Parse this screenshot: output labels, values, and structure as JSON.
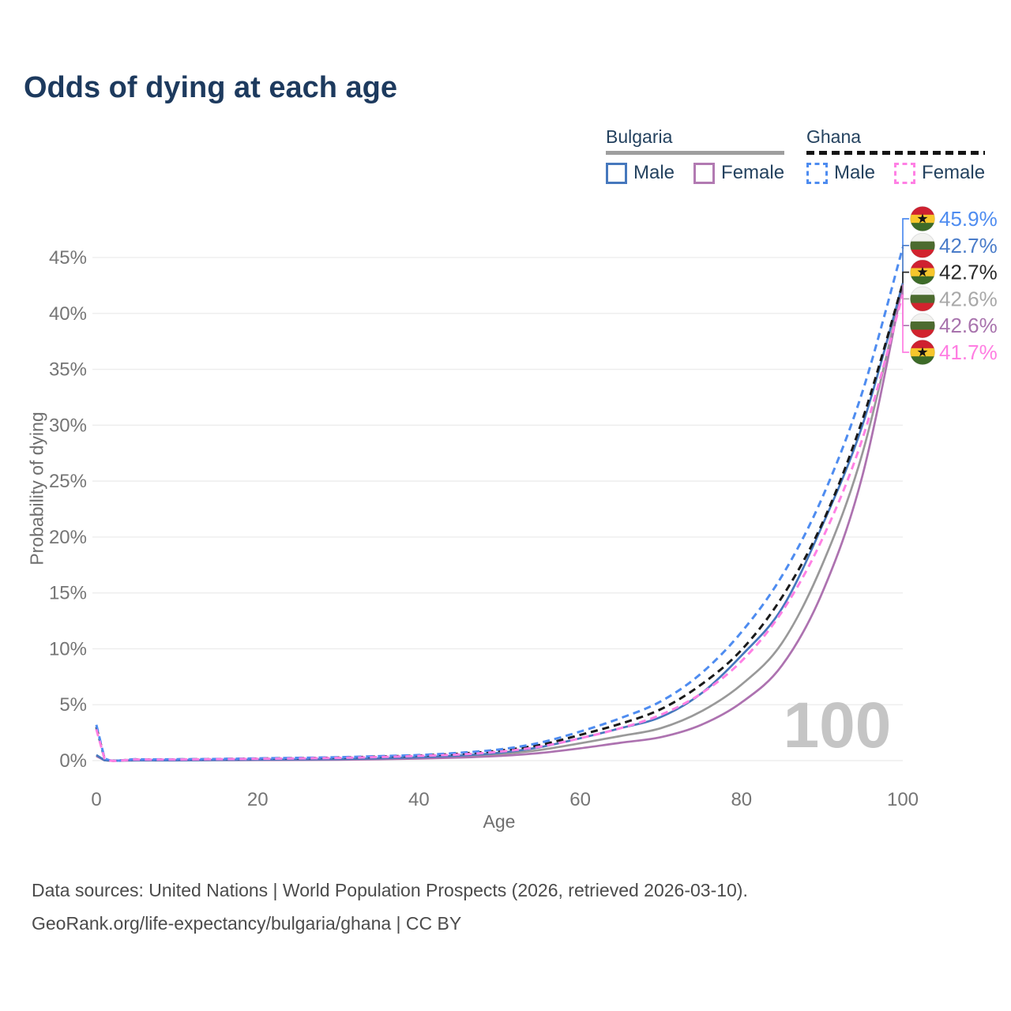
{
  "title": "Odds of dying at each age",
  "legend": {
    "groups": [
      {
        "name": "Bulgaria",
        "line_style": "solid",
        "underline_color": "#9e9e9e",
        "items": [
          {
            "label": "Male",
            "color": "#4678bd",
            "dashed": false
          },
          {
            "label": "Female",
            "color": "#b27ab2",
            "dashed": false
          }
        ]
      },
      {
        "name": "Ghana",
        "line_style": "dashed",
        "underline_color": "#141414",
        "items": [
          {
            "label": "Male",
            "color": "#4e8cf0",
            "dashed": true
          },
          {
            "label": "Female",
            "color": "#ff80e4",
            "dashed": true
          }
        ]
      }
    ]
  },
  "chart_data": {
    "type": "line",
    "title": "Odds of dying at each age",
    "xlabel": "Age",
    "ylabel": "Probability of dying",
    "xlim": [
      0,
      100
    ],
    "ylim": [
      0,
      47
    ],
    "grid": true,
    "watermark": "100",
    "xticks": [
      0,
      20,
      40,
      60,
      80,
      100
    ],
    "yticks": [
      0,
      5,
      10,
      15,
      20,
      25,
      30,
      35,
      40,
      45
    ],
    "ytick_suffix": "%",
    "x": [
      0,
      1,
      5,
      10,
      15,
      20,
      25,
      30,
      35,
      40,
      45,
      50,
      55,
      60,
      65,
      70,
      75,
      80,
      85,
      90,
      95,
      100
    ],
    "series": [
      {
        "name": "Bulgaria",
        "color": "#999999",
        "dashed": false,
        "values": [
          0.45,
          0.035,
          0.025,
          0.025,
          0.05,
          0.07,
          0.09,
          0.12,
          0.17,
          0.25,
          0.38,
          0.58,
          0.95,
          1.55,
          2.2,
          2.9,
          4.4,
          6.8,
          10.5,
          17.5,
          27.5,
          42.6
        ]
      },
      {
        "name": "Bulgaria Female",
        "color": "#ad72b0",
        "dashed": false,
        "values": [
          0.4,
          0.03,
          0.02,
          0.02,
          0.04,
          0.05,
          0.06,
          0.08,
          0.12,
          0.18,
          0.27,
          0.42,
          0.68,
          1.1,
          1.6,
          2.1,
          3.2,
          5.2,
          8.5,
          15.0,
          25.5,
          42.6
        ]
      },
      {
        "name": "Bulgaria Male",
        "color": "#4678bd",
        "dashed": false,
        "values": [
          0.5,
          0.04,
          0.03,
          0.03,
          0.06,
          0.09,
          0.11,
          0.14,
          0.2,
          0.3,
          0.45,
          0.7,
          1.2,
          2.0,
          2.9,
          3.9,
          6.0,
          9.4,
          13.6,
          21.0,
          30.0,
          42.7
        ]
      },
      {
        "name": "Ghana",
        "color": "#1a1a1a",
        "dashed": true,
        "values": [
          3.0,
          0.22,
          0.11,
          0.11,
          0.14,
          0.18,
          0.22,
          0.27,
          0.36,
          0.46,
          0.62,
          0.9,
          1.4,
          2.3,
          3.3,
          4.6,
          6.8,
          9.9,
          14.6,
          21.2,
          30.5,
          42.7
        ]
      },
      {
        "name": "Ghana Male",
        "color": "#4e8cf0",
        "dashed": true,
        "values": [
          3.2,
          0.25,
          0.12,
          0.12,
          0.15,
          0.2,
          0.25,
          0.3,
          0.4,
          0.5,
          0.7,
          1.0,
          1.6,
          2.6,
          3.8,
          5.3,
          7.8,
          11.5,
          16.5,
          23.5,
          33.0,
          45.9
        ]
      },
      {
        "name": "Ghana Female",
        "color": "#ff80e4",
        "dashed": true,
        "values": [
          2.8,
          0.2,
          0.1,
          0.1,
          0.13,
          0.16,
          0.2,
          0.24,
          0.32,
          0.42,
          0.55,
          0.8,
          1.25,
          2.0,
          2.9,
          4.1,
          6.0,
          8.9,
          13.3,
          19.8,
          28.8,
          41.7
        ]
      }
    ],
    "end_labels": [
      {
        "text": "45.9%",
        "color": "#4e8cf0",
        "flag": "ghana",
        "series": "Ghana Male",
        "value": 45.9
      },
      {
        "text": "42.7%",
        "color": "#4a7cc9",
        "flag": "bulgaria",
        "series": "Bulgaria Male",
        "value": 42.7
      },
      {
        "text": "42.7%",
        "color": "#2a2a2a",
        "flag": "ghana",
        "series": "Ghana",
        "value": 42.7
      },
      {
        "text": "42.6%",
        "color": "#a8a8a8",
        "flag": "bulgaria",
        "series": "Bulgaria",
        "value": 42.6
      },
      {
        "text": "42.6%",
        "color": "#a873ad",
        "flag": "bulgaria",
        "series": "Bulgaria Female",
        "value": 42.6
      },
      {
        "text": "41.7%",
        "color": "#ff7de2",
        "flag": "ghana",
        "series": "Ghana Female",
        "value": 41.7
      }
    ],
    "flag_colors": {
      "ghana": {
        "top": "#cf2030",
        "middle": "#f7c62c",
        "bottom": "#3d6b28",
        "star": "#141414"
      },
      "bulgaria": {
        "top": "#f2f2f0",
        "middle": "#4c6b2f",
        "bottom": "#d2232e"
      }
    },
    "style": {
      "grid_color": "#ededed",
      "tick_color": "#757575",
      "watermark_color": "#c5c5c5"
    }
  },
  "footer": {
    "line1": "Data sources: United Nations | World Population Prospects (2026, retrieved 2026-03-10).",
    "line2": "GeoRank.org/life-expectancy/bulgaria/ghana | CC BY"
  }
}
